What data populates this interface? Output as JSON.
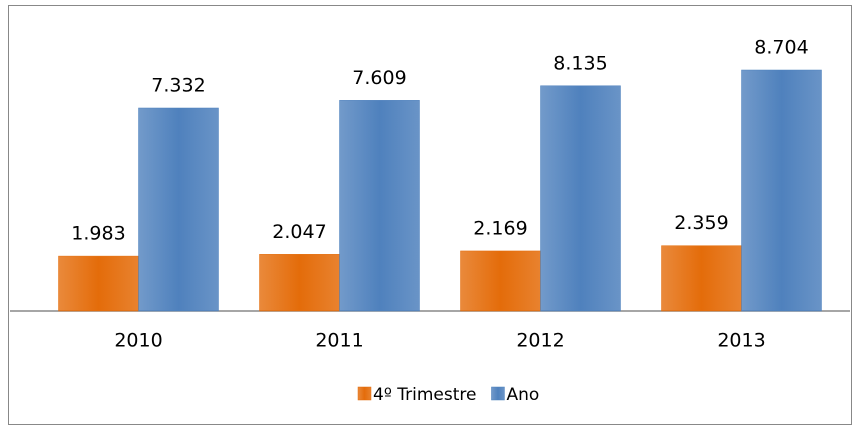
{
  "chart_data": {
    "type": "bar",
    "categories": [
      "2010",
      "2011",
      "2012",
      "2013"
    ],
    "series": [
      {
        "name": "4º Trimestre",
        "color": "#e46c0a",
        "values": [
          1983,
          2047,
          2169,
          2359
        ],
        "value_labels": [
          "1.983",
          "2.047",
          "2.169",
          "2.359"
        ]
      },
      {
        "name": "Ano",
        "color": "#4f81bd",
        "values": [
          7332,
          7609,
          8135,
          8704
        ],
        "value_labels": [
          "7.332",
          "7.609",
          "8.135",
          "8.704"
        ]
      }
    ]
  }
}
